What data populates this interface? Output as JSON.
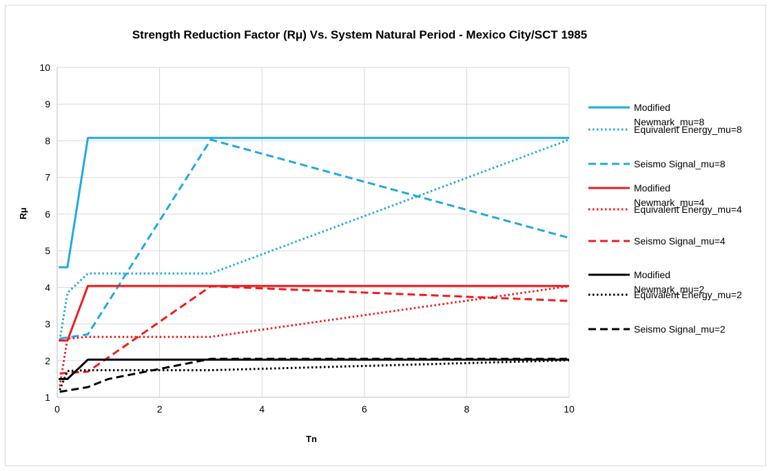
{
  "chart_data": {
    "type": "line",
    "title": "Strength Reduction Factor (Rμ) Vs. System Natural Period - Mexico City/SCT 1985",
    "xlabel": "Tn",
    "ylabel": "Rμ",
    "xlim": [
      0,
      10
    ],
    "ylim": [
      1,
      10
    ],
    "x_ticks": [
      "0",
      "2",
      "4",
      "6",
      "8",
      "10"
    ],
    "y_ticks": [
      "1",
      "2",
      "3",
      "4",
      "5",
      "6",
      "7",
      "8",
      "9",
      "10"
    ],
    "grid": "vertical and horizontal major gridlines",
    "legend_position": "right",
    "series": [
      {
        "name": "Modified Newmark_mu=8",
        "color": "#1fa9e1",
        "style": "solid",
        "points": [
          [
            0.03,
            4.55
          ],
          [
            0.2,
            4.55
          ],
          [
            0.6,
            8.08
          ],
          [
            10,
            8.08
          ]
        ]
      },
      {
        "name": "Equivalent Energy_mu=8",
        "color": "#1fa9e1",
        "style": "dotted",
        "points": [
          [
            0.05,
            2.55
          ],
          [
            0.2,
            3.85
          ],
          [
            0.6,
            4.38
          ],
          [
            3.0,
            4.38
          ],
          [
            10,
            8.03
          ]
        ]
      },
      {
        "name": "Seismo Signal_mu=8",
        "color": "#1fa9e1",
        "style": "dashed",
        "points": [
          [
            0.05,
            2.6
          ],
          [
            0.6,
            2.72
          ],
          [
            3.0,
            8.03
          ],
          [
            10,
            5.35
          ]
        ]
      },
      {
        "name": "Modified Newmark_mu=4",
        "color": "#ee1c1c",
        "style": "solid",
        "points": [
          [
            0.03,
            2.55
          ],
          [
            0.2,
            2.55
          ],
          [
            0.6,
            4.04
          ],
          [
            10,
            4.04
          ]
        ]
      },
      {
        "name": "Equivalent Energy_mu=4",
        "color": "#ee1c1c",
        "style": "dotted",
        "points": [
          [
            0.05,
            1.3
          ],
          [
            0.2,
            2.6
          ],
          [
            0.6,
            2.65
          ],
          [
            3.0,
            2.65
          ],
          [
            10,
            4.03
          ]
        ]
      },
      {
        "name": "Seismo Signal_mu=4",
        "color": "#ee1c1c",
        "style": "dashed",
        "points": [
          [
            0.05,
            1.65
          ],
          [
            0.6,
            1.7
          ],
          [
            3.0,
            4.03
          ],
          [
            10,
            3.63
          ]
        ]
      },
      {
        "name": "Modified Newmark_mu=2",
        "color": "#000000",
        "style": "solid",
        "points": [
          [
            0.03,
            1.5
          ],
          [
            0.2,
            1.5
          ],
          [
            0.6,
            2.03
          ],
          [
            10,
            2.03
          ]
        ]
      },
      {
        "name": "Equivalent Energy_mu=2",
        "color": "#000000",
        "style": "dotted",
        "points": [
          [
            0.05,
            1.2
          ],
          [
            0.2,
            1.72
          ],
          [
            0.6,
            1.74
          ],
          [
            3.0,
            1.74
          ],
          [
            10,
            2.01
          ]
        ]
      },
      {
        "name": "Seismo Signal_mu=2",
        "color": "#000000",
        "style": "dashed",
        "points": [
          [
            0.05,
            1.15
          ],
          [
            0.6,
            1.28
          ],
          [
            1.0,
            1.5
          ],
          [
            3.0,
            2.05
          ],
          [
            10,
            2.05
          ]
        ]
      }
    ]
  },
  "legend": {
    "items": [
      {
        "line1": "Modified",
        "line2": "Newmark_mu=8"
      },
      {
        "line1": "Equivalent Energy_mu=8",
        "line2": ""
      },
      {
        "line1": "Seismo Signal_mu=8",
        "line2": ""
      },
      {
        "line1": "Modified",
        "line2": "Newmark_mu=4"
      },
      {
        "line1": "Equivalent Energy_mu=4",
        "line2": ""
      },
      {
        "line1": "Seismo Signal_mu=4",
        "line2": ""
      },
      {
        "line1": "Modified",
        "line2": "Newmark_mu=2"
      },
      {
        "line1": "Equivalent Energy_mu=2",
        "line2": ""
      },
      {
        "line1": "Seismo Signal_mu=2",
        "line2": ""
      }
    ]
  }
}
